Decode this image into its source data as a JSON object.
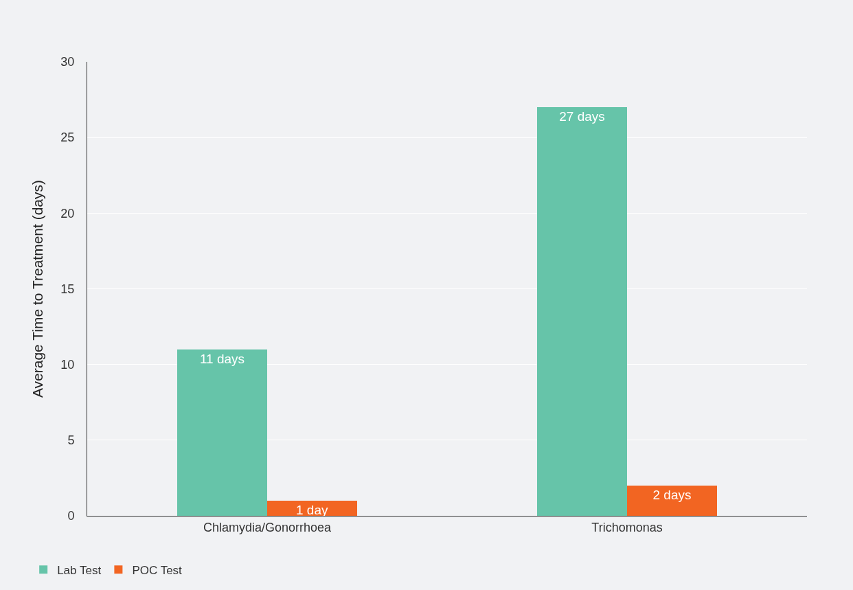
{
  "chart_data": {
    "type": "bar",
    "ylabel": "Average Time to Treatment (days)",
    "categories": [
      "Chlamydia/Gonorrhoea",
      "Trichomonas"
    ],
    "series": [
      {
        "name": "Lab Test",
        "color": "#66c4a9",
        "values": [
          11,
          27
        ],
        "value_labels": [
          "11 days",
          "27 days"
        ]
      },
      {
        "name": "POC Test",
        "color": "#f26522",
        "values": [
          1,
          2
        ],
        "value_labels": [
          "1 day",
          "2 days"
        ]
      }
    ],
    "ylim": [
      0,
      30
    ],
    "yticks": [
      0,
      5,
      10,
      15,
      20,
      25,
      30
    ],
    "grid": "y",
    "legend": "bottom left"
  }
}
